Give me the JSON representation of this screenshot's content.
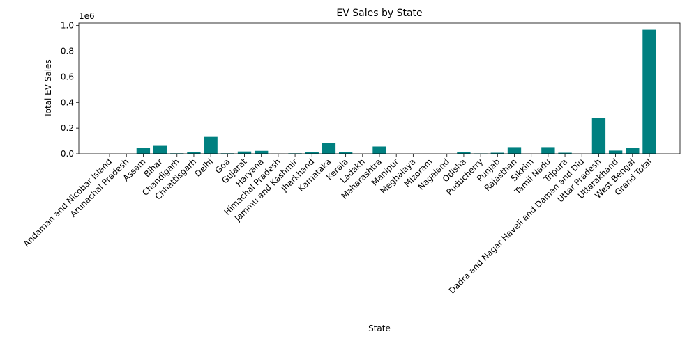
{
  "chart_data": {
    "type": "bar",
    "title": "EV Sales by State",
    "xlabel": "State",
    "ylabel": "Total EV Sales",
    "y_scale_label": "1e6",
    "ylim": [
      0,
      1.02
    ],
    "yticks": [
      0.0,
      0.2,
      0.4,
      0.6,
      0.8,
      1.0
    ],
    "ytick_labels": [
      "0.0",
      "0.2",
      "0.4",
      "0.6",
      "0.8",
      "1.0"
    ],
    "bar_color": "#008080",
    "grid": false,
    "categories": [
      "Andaman and Nicobar Island",
      "Arunachal Pradesh",
      "Assam",
      "Bihar",
      "Chandigarh",
      "Chhattisgarh",
      "Delhi",
      "Goa",
      "Gujarat",
      "Haryana",
      "Himachal Pradesh",
      "Jammu and Kashmir",
      "Jharkhand",
      "Karnataka",
      "Kerala",
      "Ladakh",
      "Maharashtra",
      "Manipur",
      "Meghalaya",
      "Mizoram",
      "Nagaland",
      "Odisha",
      "Puducherry",
      "Punjab",
      "Rajasthan",
      "Sikkim",
      "Tamil Nadu",
      "Tripura",
      "Dadra and Nagar Haveli and Daman and Diu",
      "Uttar Pradesh",
      "Uttarakhand",
      "West Bengal",
      "Grand Total"
    ],
    "values": [
      0.0001,
      0.0001,
      0.047,
      0.062,
      0.004,
      0.014,
      0.132,
      0.004,
      0.018,
      0.023,
      0.0008,
      0.004,
      0.013,
      0.084,
      0.013,
      0.0001,
      0.057,
      0.0001,
      0.0001,
      0.0001,
      0.0001,
      0.014,
      0.003,
      0.008,
      0.052,
      0.0001,
      0.052,
      0.008,
      0.0001,
      0.278,
      0.025,
      0.045,
      0.968
    ]
  }
}
